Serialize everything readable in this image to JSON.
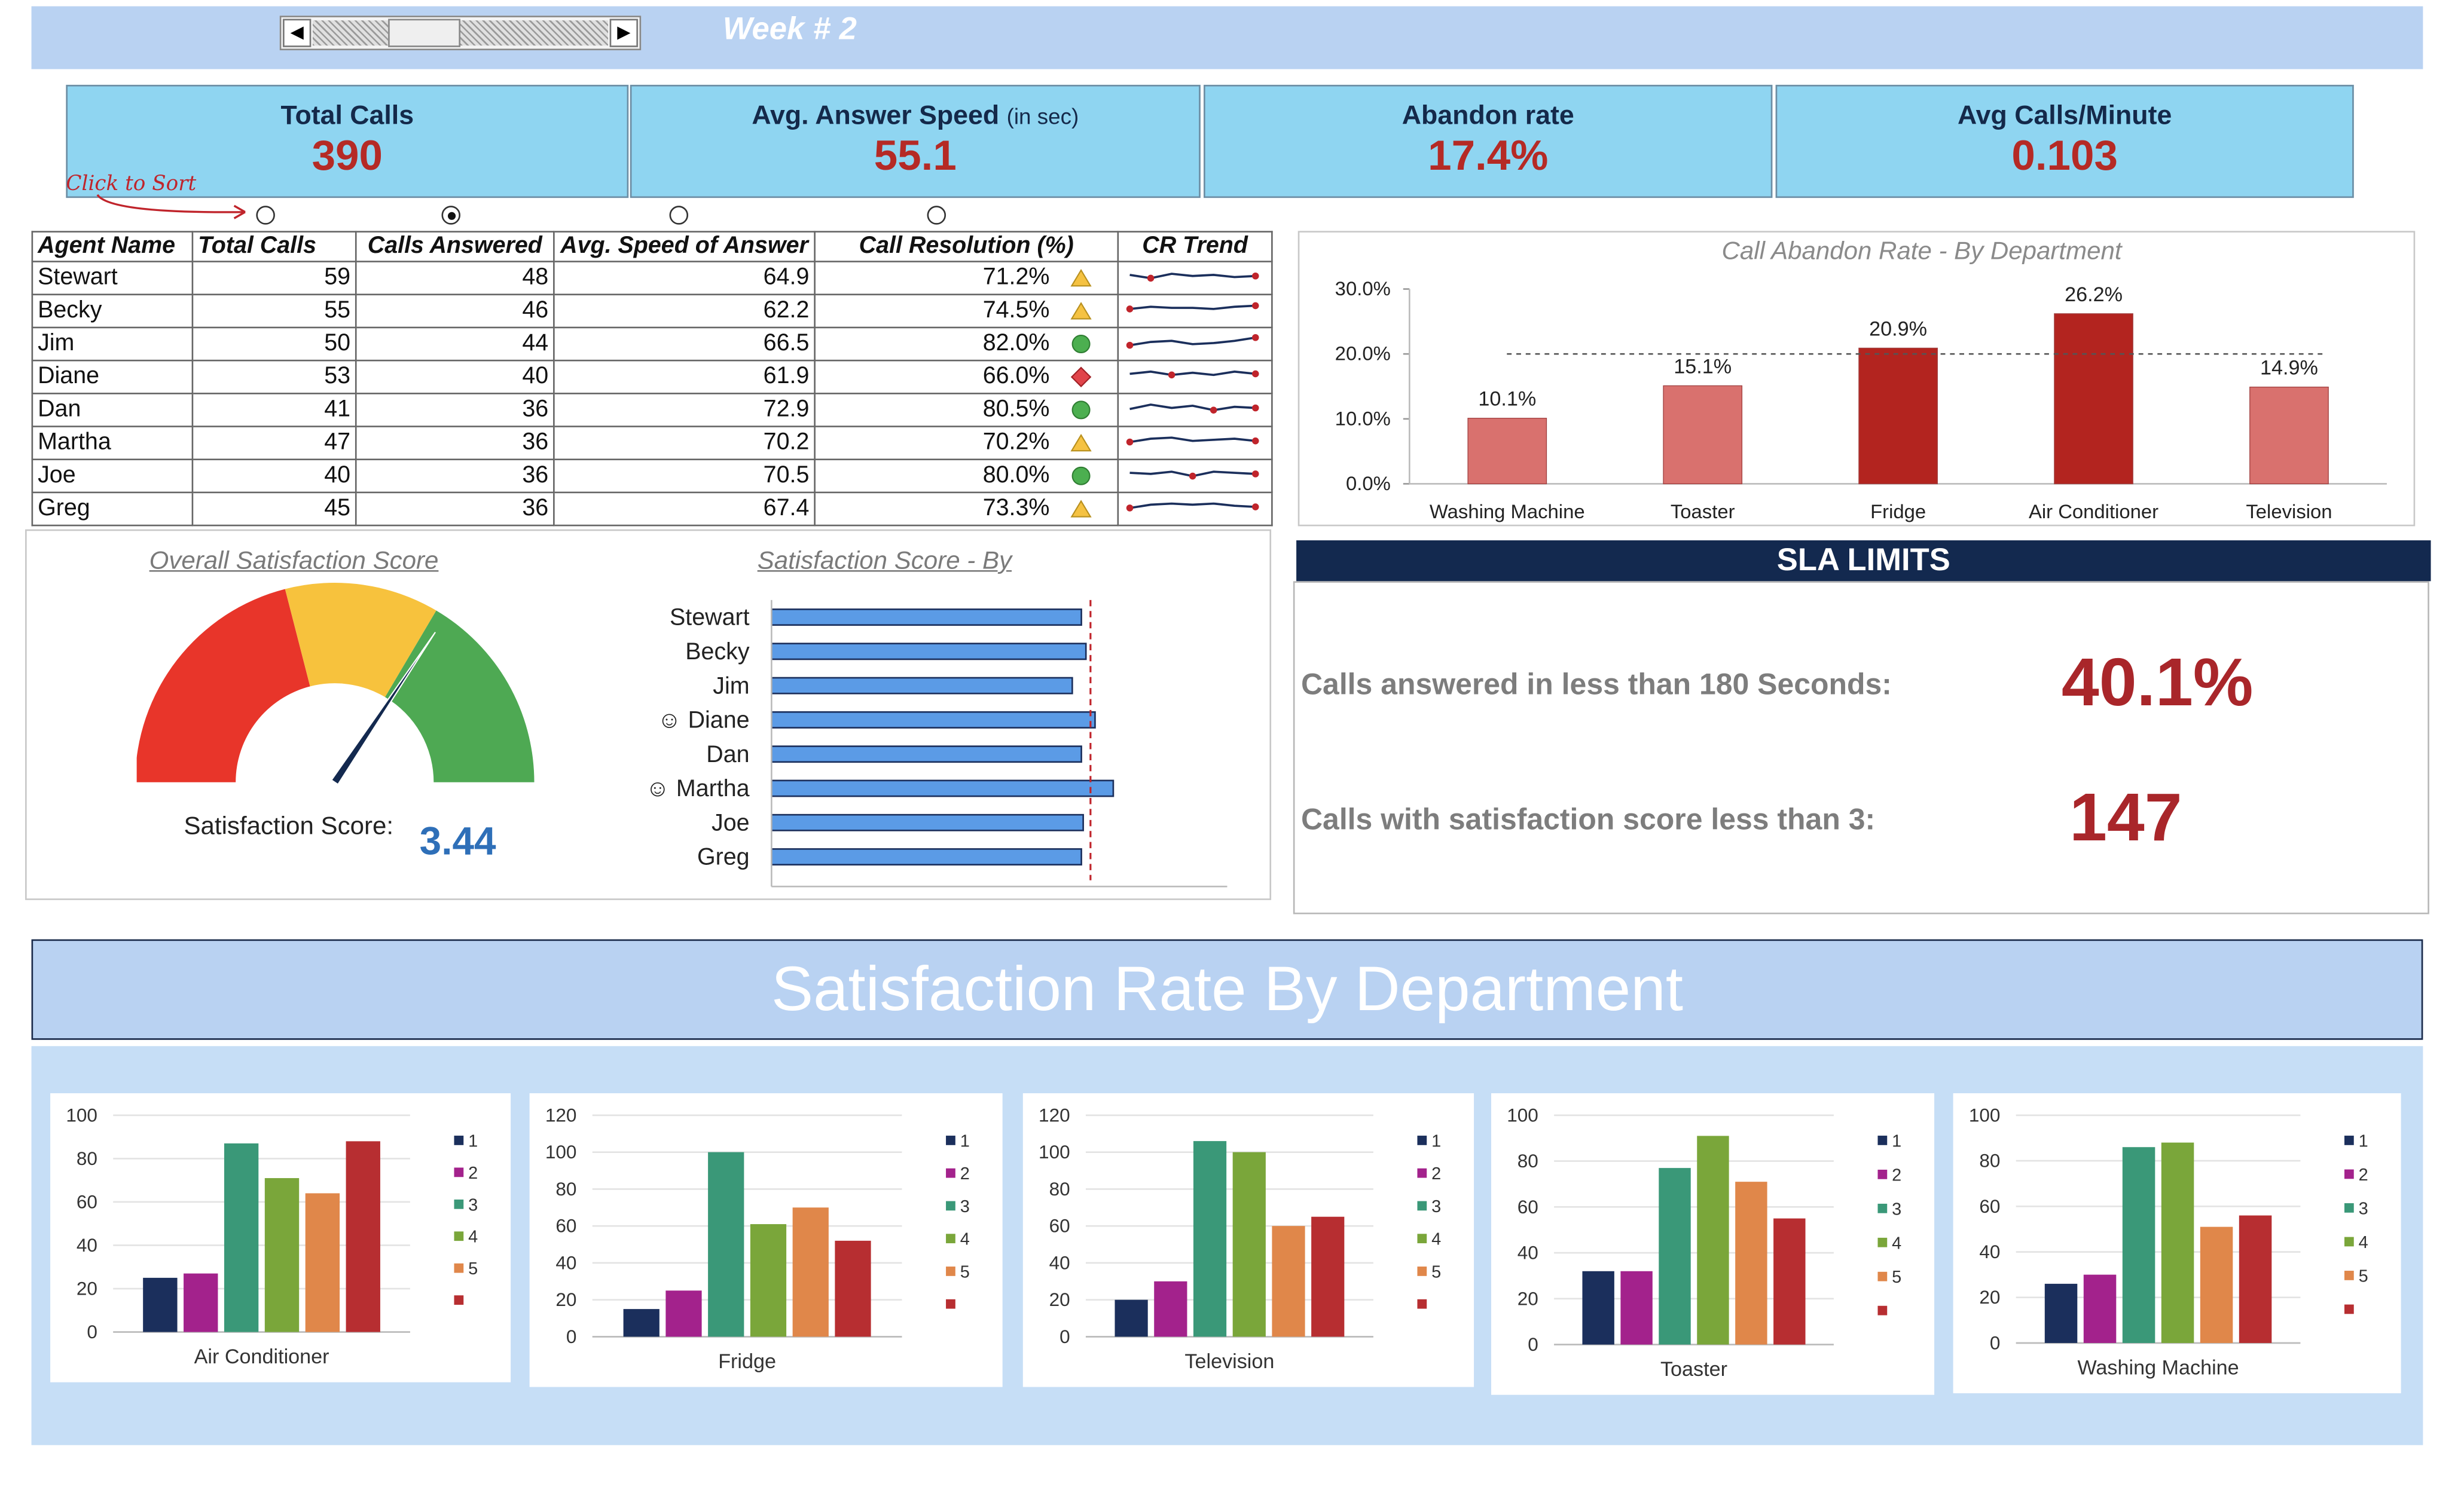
{
  "header": {
    "week_label": "Week # 2"
  },
  "kpis": [
    {
      "label": "Total Calls",
      "unit": "",
      "value": "390"
    },
    {
      "label": "Avg. Answer Speed",
      "unit": "(in sec)",
      "value": "55.1"
    },
    {
      "label": "Abandon rate",
      "unit": "",
      "value": "17.4%"
    },
    {
      "label": "Avg Calls/Minute",
      "unit": "",
      "value": "0.103"
    }
  ],
  "sort": {
    "label": "Click to Sort",
    "selected_index": 1
  },
  "table": {
    "headers": [
      "Agent Name",
      "Total Calls",
      "Calls Answered",
      "Avg. Speed of Answer",
      "Call Resolution (%)",
      "CR Trend"
    ],
    "rows": [
      {
        "name": "Stewart",
        "total": "59",
        "answered": "48",
        "speed": "64.9",
        "resolution": "71.2%",
        "status": "warning-triangle"
      },
      {
        "name": "Becky",
        "total": "55",
        "answered": "46",
        "speed": "62.2",
        "resolution": "74.5%",
        "status": "warning-triangle"
      },
      {
        "name": "Jim",
        "total": "50",
        "answered": "44",
        "speed": "66.5",
        "resolution": "82.0%",
        "status": "good-circle"
      },
      {
        "name": "Diane",
        "total": "53",
        "answered": "40",
        "speed": "61.9",
        "resolution": "66.0%",
        "status": "bad-diamond"
      },
      {
        "name": "Dan",
        "total": "41",
        "answered": "36",
        "speed": "72.9",
        "resolution": "80.5%",
        "status": "good-circle"
      },
      {
        "name": "Martha",
        "total": "47",
        "answered": "36",
        "speed": "70.2",
        "resolution": "70.2%",
        "status": "warning-triangle"
      },
      {
        "name": "Joe",
        "total": "40",
        "answered": "36",
        "speed": "70.5",
        "resolution": "80.0%",
        "status": "good-circle"
      },
      {
        "name": "Greg",
        "total": "45",
        "answered": "36",
        "speed": "67.4",
        "resolution": "73.3%",
        "status": "warning-triangle"
      }
    ],
    "sparklines": [
      [
        0.5,
        0.35,
        0.55,
        0.45,
        0.5,
        0.4,
        0.45
      ],
      [
        0.45,
        0.55,
        0.5,
        0.5,
        0.45,
        0.55,
        0.6
      ],
      [
        0.3,
        0.45,
        0.5,
        0.35,
        0.4,
        0.5,
        0.65
      ],
      [
        0.5,
        0.6,
        0.45,
        0.55,
        0.45,
        0.6,
        0.5
      ],
      [
        0.4,
        0.6,
        0.45,
        0.55,
        0.35,
        0.5,
        0.45
      ],
      [
        0.4,
        0.55,
        0.6,
        0.45,
        0.5,
        0.55,
        0.45
      ],
      [
        0.5,
        0.45,
        0.55,
        0.35,
        0.55,
        0.5,
        0.45
      ],
      [
        0.4,
        0.55,
        0.6,
        0.55,
        0.6,
        0.5,
        0.45
      ]
    ],
    "status_colors": {
      "warning-triangle": "#f5c242",
      "good-circle": "#4caf50",
      "bad-diamond": "#e0444a"
    }
  },
  "abandon_chart": {
    "title": "Call Abandon Rate - By Department",
    "chart_data": {
      "type": "bar",
      "categories": [
        "Washing Machine",
        "Toaster",
        "Fridge",
        "Air Conditioner",
        "Television"
      ],
      "values": [
        10.1,
        15.1,
        20.9,
        26.2,
        14.9
      ],
      "value_labels": [
        "10.1%",
        "15.1%",
        "20.9%",
        "26.2%",
        "14.9%"
      ],
      "ylim": [
        0,
        30
      ],
      "yticks": [
        "0.0%",
        "10.0%",
        "20.0%",
        "30.0%"
      ],
      "threshold": 20,
      "colors": [
        "#d9716e",
        "#d9716e",
        "#b3241f",
        "#b3241f",
        "#d9716e"
      ]
    }
  },
  "gauge": {
    "title": "Overall Satisfaction Score",
    "label": "Satisfaction Score:",
    "value": "3.44",
    "score": 3.44
  },
  "agent_score_chart": {
    "title": "Satisfaction Score - By",
    "chart_data": {
      "type": "bar",
      "categories": [
        "Stewart",
        "Becky",
        "Jim",
        "Diane",
        "Dan",
        "Martha",
        "Joe",
        "Greg"
      ],
      "markers": [
        "",
        "",
        "",
        "☺",
        "",
        "☺",
        "",
        ""
      ],
      "values": [
        3.4,
        3.45,
        3.3,
        3.55,
        3.4,
        3.75,
        3.42,
        3.4
      ],
      "xlim": [
        0,
        5
      ],
      "xticks": [
        "0",
        "1",
        "2",
        "3",
        "4",
        "5"
      ],
      "target": 3.5
    }
  },
  "sla": {
    "header": "SLA LIMITS",
    "items": [
      {
        "label": "Calls answered in less than 180 Seconds:",
        "value": "40.1%"
      },
      {
        "label": "Calls with satisfaction score less than 3:",
        "value": "147"
      }
    ]
  },
  "dept_section": {
    "title": "Satisfaction Rate By Department",
    "legend_labels": [
      "1",
      "2",
      "3",
      "4",
      "5",
      ""
    ],
    "series_colors": [
      "#1b2f5c",
      "#a3228c",
      "#3a9878",
      "#7aa63a",
      "#e0874a",
      "#b72e31"
    ],
    "charts": [
      {
        "name": "Air Conditioner",
        "ymax": 100,
        "yticks": [
          "0",
          "20",
          "40",
          "60",
          "80",
          "100"
        ],
        "values": [
          25,
          27,
          87,
          71,
          64,
          88
        ]
      },
      {
        "name": "Fridge",
        "ymax": 120,
        "yticks": [
          "0",
          "20",
          "40",
          "60",
          "80",
          "100",
          "120"
        ],
        "values": [
          15,
          25,
          100,
          61,
          70,
          52
        ]
      },
      {
        "name": "Television",
        "ymax": 120,
        "yticks": [
          "0",
          "20",
          "40",
          "60",
          "80",
          "100",
          "120"
        ],
        "values": [
          20,
          30,
          106,
          100,
          60,
          65
        ]
      },
      {
        "name": "Toaster",
        "ymax": 100,
        "yticks": [
          "0",
          "20",
          "40",
          "60",
          "80",
          "100"
        ],
        "values": [
          32,
          32,
          77,
          91,
          71,
          55
        ]
      },
      {
        "name": "Washing Machine",
        "ymax": 100,
        "yticks": [
          "0",
          "20",
          "40",
          "60",
          "80",
          "100"
        ],
        "values": [
          26,
          30,
          86,
          88,
          51,
          56
        ]
      }
    ]
  }
}
